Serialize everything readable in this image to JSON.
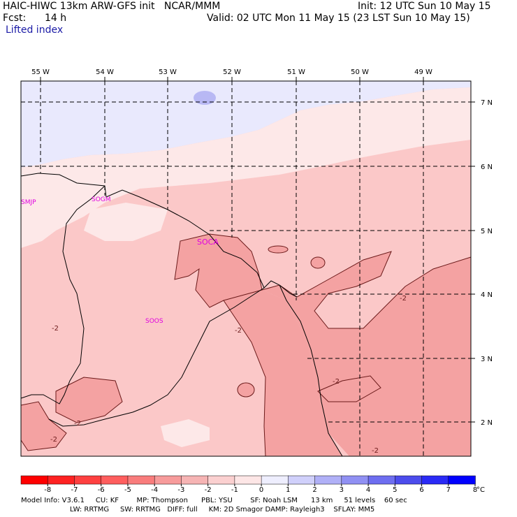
{
  "header": {
    "model_line": "HAIC-HIWC 13km ARW-GFS init   NCAR/MMM",
    "forecast_label": "Fcst:",
    "forecast_hours": "14 h",
    "field_name": "Lifted index",
    "init_text": "Init: 12 UTC Sun 10 May 15",
    "valid_text": "Valid: 02 UTC Mon 11 May 15 (23 LST Sun 10 May 15)"
  },
  "map": {
    "lon_labels": [
      "55 W",
      "54 W",
      "53 W",
      "52 W",
      "51 W",
      "50 W",
      "49 W"
    ],
    "lat_labels": [
      "7 N",
      "6 N",
      "5 N",
      "4 N",
      "3 N",
      "2 N"
    ],
    "stations": [
      "SMJP",
      "SOGM",
      "SOCA",
      "SOOS"
    ],
    "contour_label": "-2",
    "colors": {
      "strong_neg": "#f4a2a2",
      "mid_neg": "#fbc8c8",
      "weak_neg": "#fde8e8",
      "weak_pos": "#e9e9fd",
      "pos": "#b8b8f4",
      "station": "#e000e0",
      "contour": "#6b1a1a"
    }
  },
  "colorbar": {
    "ticks": [
      "-8",
      "-7",
      "-6",
      "-5",
      "-4",
      "-3",
      "-2",
      "-1",
      "0",
      "1",
      "2",
      "3",
      "4",
      "5",
      "6",
      "7",
      "8"
    ],
    "unit": "°C",
    "colors": [
      "#ff0000",
      "#ff2222",
      "#ff4040",
      "#ff5e5e",
      "#f97c7c",
      "#f79b9b",
      "#f6b4b4",
      "#fbd0d0",
      "#fde6e6",
      "#eeeefe",
      "#d0d0fb",
      "#b0b0f7",
      "#9090f3",
      "#6e6ef0",
      "#4c4cec",
      "#2a2af6",
      "#0000ff"
    ]
  },
  "footer": {
    "line1": "Model Info: V3.6.1     CU: KF        MP: Thompson      PBL: YSU        SF: Noah LSM      13 km     51 levels    60 sec",
    "line2": "                      LW: RRTMG     SW: RRTMG   DIFF: full     KM: 2D Smagor DAMP: Rayleigh3    SFLAY: MM5"
  }
}
